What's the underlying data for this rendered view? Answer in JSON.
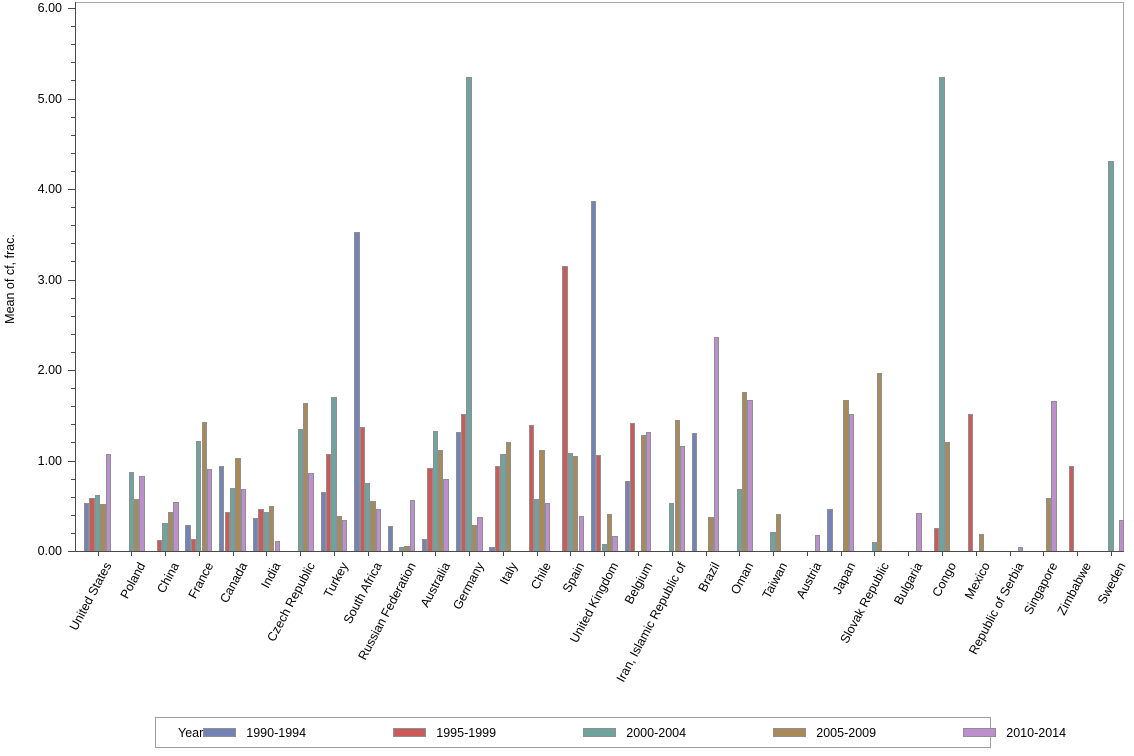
{
  "chart_data": {
    "type": "bar",
    "title": "",
    "xlabel": "",
    "ylabel": "Mean of cf, frac.",
    "ylim": [
      0,
      6
    ],
    "y_major_step": 1,
    "y_minor_step": 0.2,
    "y_tick_labels": [
      "0.00",
      "1.00",
      "2.00",
      "3.00",
      "4.00",
      "5.00",
      "6.00"
    ],
    "grid": "off",
    "legend_title": "Year",
    "legend_position": "bottom",
    "bar_border_color": "#8f8f8f",
    "categories": [
      "United States",
      "Poland",
      "China",
      "France",
      "Canada",
      "India",
      "Czech Republic",
      "Turkey",
      "South Africa",
      "Russian Federation",
      "Australia",
      "Germany",
      "Italy",
      "Chile",
      "Spain",
      "United Kingdom",
      "Belgium",
      "Iran, Islamic Republic of",
      "Brazil",
      "Oman",
      "Taiwan",
      "Austria",
      "Japan",
      "Slovak Republic",
      "Bulgaria",
      "Congo",
      "Mexico",
      "Republic of Serbia",
      "Singapore",
      "Zimbabwe",
      "Sweden"
    ],
    "series": [
      {
        "name": "1990-1994",
        "color": "#7483b5",
        "values": [
          0.53,
          null,
          null,
          0.29,
          0.94,
          0.36,
          null,
          0.65,
          3.53,
          0.28,
          0.13,
          1.31,
          0.05,
          null,
          null,
          3.87,
          0.77,
          null,
          1.3,
          null,
          null,
          null,
          0.46,
          null,
          null,
          null,
          null,
          null,
          null,
          null,
          null
        ]
      },
      {
        "name": "1995-1999",
        "color": "#cb5a5a",
        "values": [
          0.59,
          null,
          0.12,
          0.13,
          0.43,
          0.47,
          null,
          1.07,
          1.37,
          null,
          0.92,
          1.51,
          0.94,
          1.39,
          3.15,
          1.06,
          1.42,
          null,
          null,
          null,
          null,
          null,
          null,
          null,
          null,
          0.26,
          1.51,
          null,
          null,
          0.94,
          null
        ]
      },
      {
        "name": "2000-2004",
        "color": "#6ea49d",
        "values": [
          0.62,
          0.87,
          0.31,
          1.22,
          0.7,
          0.43,
          1.35,
          1.7,
          0.75,
          0.05,
          1.33,
          5.24,
          1.07,
          0.57,
          1.08,
          0.08,
          null,
          0.53,
          null,
          0.69,
          0.21,
          null,
          null,
          0.1,
          null,
          5.24,
          null,
          null,
          null,
          null,
          4.31
        ]
      },
      {
        "name": "2005-2009",
        "color": "#a78a57",
        "values": [
          0.52,
          0.57,
          0.43,
          1.43,
          1.03,
          0.5,
          1.64,
          0.39,
          0.55,
          0.06,
          1.12,
          0.29,
          1.2,
          1.12,
          1.05,
          0.41,
          1.28,
          1.45,
          0.38,
          1.76,
          0.41,
          null,
          1.67,
          1.97,
          null,
          1.2,
          0.19,
          null,
          0.59,
          null,
          null
        ]
      },
      {
        "name": "2010-2014",
        "color": "#bd8fcd",
        "values": [
          1.07,
          0.83,
          0.54,
          0.91,
          0.69,
          0.11,
          0.86,
          0.34,
          0.46,
          0.56,
          0.8,
          0.38,
          null,
          0.53,
          0.39,
          0.17,
          1.31,
          1.16,
          2.37,
          1.67,
          null,
          0.18,
          1.51,
          null,
          0.42,
          null,
          null,
          0.05,
          1.66,
          null,
          0.34
        ]
      }
    ]
  }
}
